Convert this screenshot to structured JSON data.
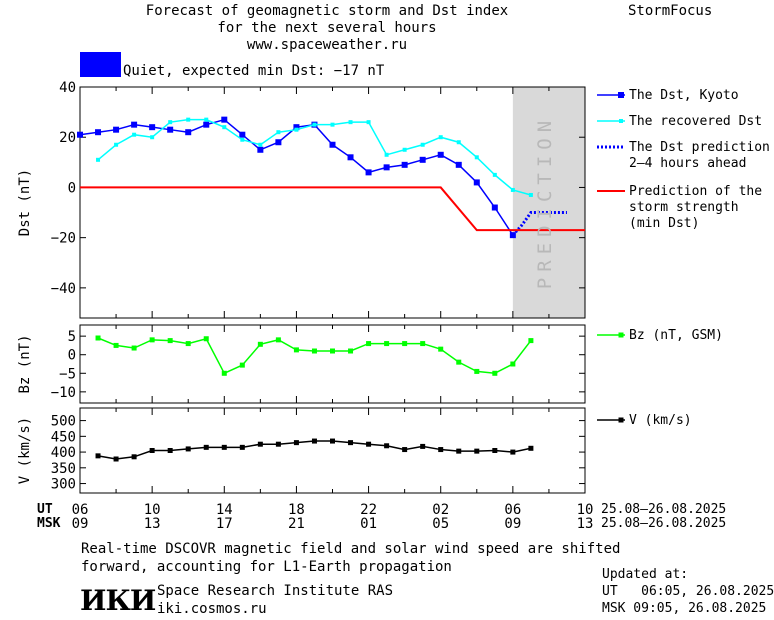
{
  "header": {
    "title_lines": [
      "Forecast of geomagnetic storm and Dst index",
      "for the next several hours",
      "www.spaceweather.ru"
    ],
    "brand": "StormFocus",
    "status_text": "Quiet, expected min Dst: −17 nT",
    "status_color": "#0000ff"
  },
  "legend": {
    "dst_kyoto": "The Dst, Kyoto",
    "dst_recovered": "The recovered Dst",
    "dst_prediction": [
      "The Dst prediction",
      "2–4 hours ahead"
    ],
    "storm_strength": [
      "Prediction of the",
      "storm strength",
      "(min Dst)"
    ],
    "bz": "Bz (nT, GSM)",
    "v": "V (km/s)"
  },
  "prediction_label": "PREDICTION",
  "time_axis": {
    "ut_label": "UT",
    "msk_label": "MSK",
    "ut_ticks": [
      "06",
      "10",
      "14",
      "18",
      "22",
      "02",
      "06",
      "10"
    ],
    "msk_ticks": [
      "09",
      "13",
      "17",
      "21",
      "01",
      "05",
      "09",
      "13"
    ],
    "ut_range": "25.08–26.08.2025",
    "msk_range": "25.08–26.08.2025"
  },
  "footer": {
    "note_lines": [
      "Real-time DSCOVR magnetic field and solar wind speed are shifted",
      "forward, accounting for L1-Earth propagation"
    ],
    "institute": "Space Research Institute RAS",
    "website": "iki.cosmos.ru",
    "logo_text": "ИКИ",
    "updated_label": "Updated at:",
    "updated_ut": "UT   06:05, 26.08.2025",
    "updated_msk": "MSK 09:05, 26.08.2025"
  },
  "colors": {
    "dst_kyoto": "#0000ff",
    "dst_recovered": "#00ffff",
    "dst_prediction": "#0000ff",
    "storm_strength": "#ff0000",
    "bz": "#00ff00",
    "v": "#000000",
    "prediction_band": "#d9d9d9"
  },
  "chart_data": [
    {
      "type": "line",
      "ylabel": "Dst (nT)",
      "ylim": [
        -52,
        40
      ],
      "yticks": [
        40,
        20,
        0,
        -20,
        -40
      ],
      "x_unit": "hours UT from 06:00 25.08.2025",
      "xlim": [
        0,
        28
      ],
      "prediction_start": 24,
      "series": [
        {
          "name": "The Dst, Kyoto",
          "x": [
            0,
            1,
            2,
            3,
            4,
            5,
            6,
            7,
            8,
            9,
            10,
            11,
            12,
            13,
            14,
            15,
            16,
            17,
            18,
            19,
            20,
            21,
            22,
            23,
            24
          ],
          "values": [
            21,
            22,
            23,
            25,
            24,
            23,
            22,
            25,
            27,
            21,
            15,
            18,
            24,
            25,
            17,
            12,
            6,
            8,
            9,
            11,
            13,
            9,
            2,
            -8,
            -19
          ]
        },
        {
          "name": "The recovered Dst",
          "x": [
            1,
            2,
            3,
            4,
            5,
            6,
            7,
            8,
            9,
            10,
            11,
            12,
            13,
            14,
            15,
            16,
            17,
            18,
            19,
            20,
            21,
            22,
            23,
            24,
            25
          ],
          "values": [
            11,
            17,
            21,
            20,
            26,
            27,
            27,
            24,
            19,
            17,
            22,
            23,
            25,
            25,
            26,
            26,
            13,
            15,
            17,
            20,
            18,
            12,
            5,
            -1,
            -3
          ]
        },
        {
          "name": "The Dst prediction 2–4 hours ahead",
          "x": [
            24,
            24.5,
            25,
            26,
            27
          ],
          "values": [
            -19,
            -15,
            -10,
            -10,
            -10
          ]
        },
        {
          "name": "Prediction of the storm strength (min Dst)",
          "x": [
            0,
            20,
            22,
            28
          ],
          "values": [
            0,
            0,
            -17,
            -17
          ]
        }
      ]
    },
    {
      "type": "line",
      "ylabel": "Bz (nT)",
      "ylim": [
        -13,
        8
      ],
      "yticks": [
        5,
        0,
        -5,
        -10
      ],
      "series": [
        {
          "name": "Bz (nT, GSM)",
          "x": [
            1,
            2,
            3,
            4,
            5,
            6,
            7,
            8,
            9,
            10,
            11,
            12,
            13,
            14,
            15,
            16,
            17,
            18,
            19,
            20,
            21,
            22,
            23,
            24,
            25
          ],
          "values": [
            4.5,
            2.5,
            1.8,
            4,
            3.8,
            3,
            4.3,
            -5,
            -2.8,
            2.8,
            4,
            1.3,
            1,
            1,
            1,
            3,
            3,
            3,
            3,
            1.5,
            -2,
            -4.5,
            -5,
            -2.5,
            3.8
          ]
        }
      ]
    },
    {
      "type": "line",
      "ylabel": "V (km/s)",
      "ylim": [
        270,
        540
      ],
      "yticks": [
        500,
        450,
        400,
        350,
        300
      ],
      "series": [
        {
          "name": "V (km/s)",
          "x": [
            1,
            2,
            3,
            4,
            5,
            6,
            7,
            8,
            9,
            10,
            11,
            12,
            13,
            14,
            15,
            16,
            17,
            18,
            19,
            20,
            21,
            22,
            23,
            24,
            25
          ],
          "values": [
            388,
            378,
            385,
            405,
            405,
            410,
            415,
            415,
            415,
            425,
            425,
            430,
            435,
            435,
            430,
            425,
            420,
            408,
            418,
            408,
            403,
            403,
            405,
            400,
            412
          ]
        }
      ]
    }
  ]
}
